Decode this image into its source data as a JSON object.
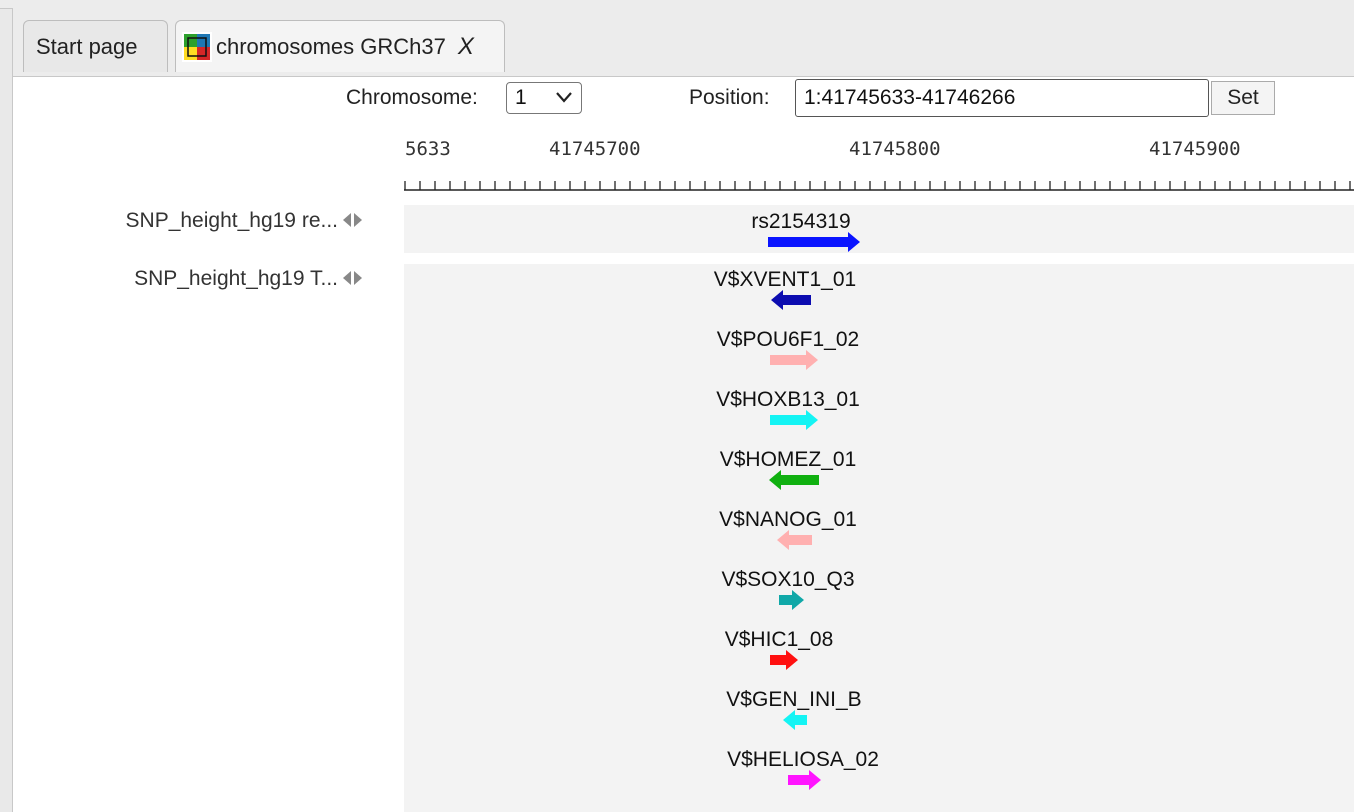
{
  "tabs": [
    {
      "label": "Start page",
      "active": false
    },
    {
      "label": "chromosomes GRCh37",
      "active": true,
      "icon": "genome-icon",
      "close_label": "X"
    }
  ],
  "controls": {
    "chromosome_label": "Chromosome:",
    "chromosome_value": "1",
    "position_label": "Position:",
    "position_value": "1:41745633-41746266",
    "set_label": "Set"
  },
  "ruler": {
    "ticks": [
      "5633",
      "41745700",
      "41745800",
      "41745900"
    ]
  },
  "tracks": [
    {
      "name": "SNP_height_hg19 re...",
      "features": [
        {
          "label": "rs2154319",
          "strand": "+",
          "color": "#0a14ff"
        }
      ]
    },
    {
      "name": "SNP_height_hg19 T...",
      "features": [
        {
          "label": "V$XVENT1_01",
          "strand": "-",
          "color": "#0c0cb0"
        },
        {
          "label": "V$POU6F1_02",
          "strand": "+",
          "color": "#ffb0b0"
        },
        {
          "label": "V$HOXB13_01",
          "strand": "+",
          "color": "#14f4f4"
        },
        {
          "label": "V$HOMEZ_01",
          "strand": "-",
          "color": "#10b010"
        },
        {
          "label": "V$NANOG_01",
          "strand": "-",
          "color": "#ffb0b0"
        },
        {
          "label": "V$SOX10_Q3",
          "strand": "+",
          "color": "#10a8a8"
        },
        {
          "label": "V$HIC1_08",
          "strand": "+",
          "color": "#ff1010"
        },
        {
          "label": "V$GEN_INI_B",
          "strand": "-",
          "color": "#14f4f4"
        },
        {
          "label": "V$HELIOSA_02",
          "strand": "+",
          "color": "#ff14ff"
        }
      ]
    }
  ]
}
